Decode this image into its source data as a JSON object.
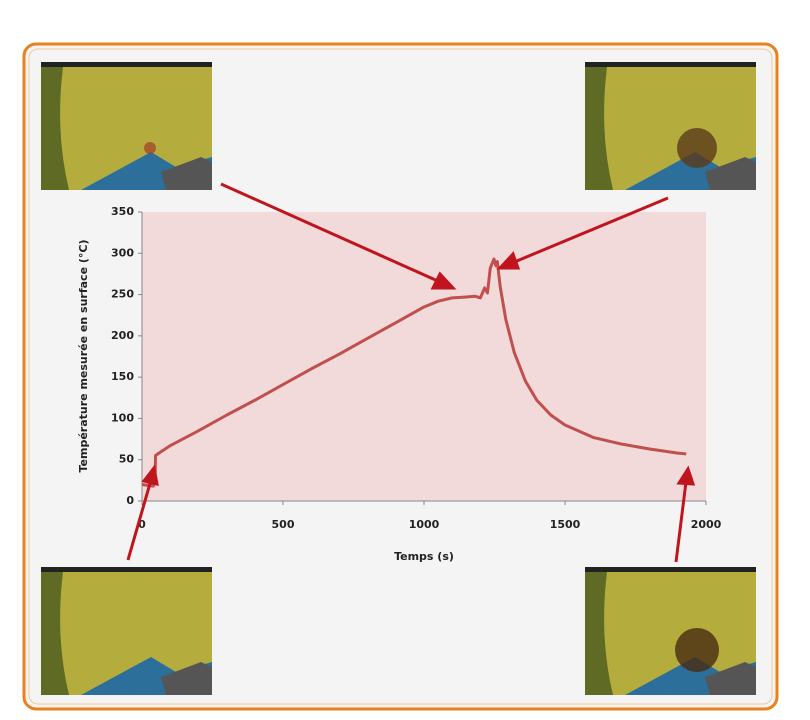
{
  "chart_data": {
    "type": "line",
    "x_label": "Temps (s)",
    "y_label": "Température mesurée en surface (°C)",
    "color": "#c0504d",
    "plot_background": "#f2dada",
    "x": [
      0,
      40,
      46,
      48,
      60,
      100,
      200,
      300,
      400,
      500,
      600,
      700,
      800,
      900,
      1000,
      1050,
      1100,
      1150,
      1180,
      1200,
      1215,
      1225,
      1235,
      1248,
      1255,
      1260,
      1270,
      1290,
      1320,
      1360,
      1400,
      1450,
      1500,
      1600,
      1700,
      1800,
      1900,
      1930
    ],
    "values": [
      20,
      18,
      22,
      55,
      58,
      67,
      85,
      104,
      122,
      141,
      160,
      178,
      197,
      216,
      235,
      242,
      246,
      247,
      248,
      246,
      258,
      252,
      282,
      293,
      285,
      290,
      260,
      220,
      180,
      145,
      122,
      104,
      92,
      77,
      69,
      63,
      58,
      57
    ],
    "xlim": [
      0,
      2000
    ],
    "xticks": [
      0,
      500,
      1000,
      1500,
      2000
    ],
    "ylim": [
      0,
      350
    ],
    "yticks": [
      0,
      50,
      100,
      150,
      200,
      250,
      300,
      350
    ]
  }
}
